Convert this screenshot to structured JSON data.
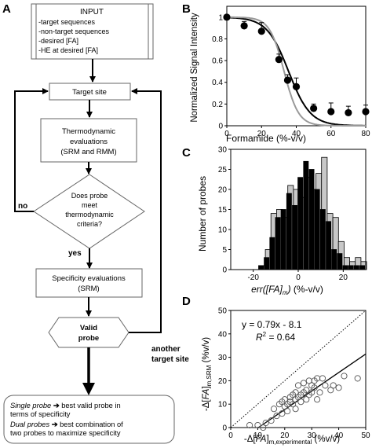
{
  "panels": {
    "a": "A",
    "b": "B",
    "c": "C",
    "d": "D"
  },
  "flowchart": {
    "input": {
      "title": "INPUT",
      "items": [
        "-target sequences",
        "-non-target sequences",
        "-desired [FA]",
        "-HE at desired [FA]"
      ]
    },
    "target_site": "Target site",
    "thermo": [
      "Thermodynamic",
      "evaluations",
      "(SRM and RMM)"
    ],
    "decision": [
      "Does probe",
      "meet",
      "thermodynamic",
      "criteria?"
    ],
    "no_label": "no",
    "yes_label": "yes",
    "specificity": [
      "Specificity evaluations",
      "(SRM)"
    ],
    "valid_probe": [
      "Valid",
      "probe"
    ],
    "another": [
      "another",
      "target site"
    ],
    "output": {
      "single_term": "Single probe",
      "single_line1": " best valid probe in",
      "single_line2": "terms of specificity",
      "dual_term": "Dual probes",
      "dual_line1": " best combination of",
      "dual_line2": "two probes to maximize specificity"
    }
  },
  "chart_data": [
    {
      "panel": "B",
      "type": "scatter",
      "xlabel": "Formamide (%-v/v)",
      "ylabel": "Normalized Signal Intensity",
      "xlim": [
        0,
        80
      ],
      "ylim": [
        0,
        1.1
      ],
      "xticks": [
        "0",
        "20",
        "40",
        "60",
        "80"
      ],
      "yticks": [
        "0",
        "0.2",
        "0.4",
        "0.6",
        "0.8",
        "1"
      ],
      "points": [
        {
          "x": 0,
          "y": 1.0,
          "err": 0.02
        },
        {
          "x": 10,
          "y": 0.92,
          "err": 0.04
        },
        {
          "x": 20,
          "y": 0.87,
          "err": 0.08
        },
        {
          "x": 30,
          "y": 0.61,
          "err": 0.05
        },
        {
          "x": 35,
          "y": 0.42,
          "err": 0.05
        },
        {
          "x": 40,
          "y": 0.36,
          "err": 0.08
        },
        {
          "x": 50,
          "y": 0.16,
          "err": 0.04
        },
        {
          "x": 60,
          "y": 0.13,
          "err": 0.08
        },
        {
          "x": 70,
          "y": 0.12,
          "err": 0.06
        },
        {
          "x": 80,
          "y": 0.13,
          "err": 0.06
        }
      ],
      "curves": [
        {
          "color": "#000000",
          "fm": 35.6,
          "m": 0.16
        },
        {
          "color": "#999999",
          "fm": 33.0,
          "m": 0.24
        }
      ]
    },
    {
      "panel": "C",
      "type": "bar",
      "xlabel": "err([FA]m) (%-v/v)",
      "ylabel": "Number of probes",
      "xlim": [
        -30,
        30
      ],
      "ylim": [
        0,
        30
      ],
      "xticks": [
        "-20",
        "0",
        "20"
      ],
      "yticks": [
        "0",
        "5",
        "10",
        "15",
        "20",
        "25",
        "30"
      ],
      "bin_width": 2.5,
      "bin_centers": [
        -21.25,
        -18.75,
        -16.25,
        -13.75,
        -11.25,
        -8.75,
        -6.25,
        -3.75,
        -1.25,
        1.25,
        3.75,
        6.25,
        8.75,
        11.25,
        13.75,
        16.25,
        18.75,
        21.25,
        23.75,
        26.25,
        28.75
      ],
      "series": [
        {
          "color": "#c8c8c8",
          "values": [
            0,
            0,
            1,
            5,
            14,
            15,
            13,
            21,
            20,
            18,
            23,
            20,
            24,
            28,
            14,
            13,
            7,
            3,
            2,
            3,
            2
          ]
        },
        {
          "color": "#000000",
          "values": [
            0,
            0,
            1,
            3,
            8,
            13,
            15,
            19,
            16,
            23,
            27,
            25,
            20,
            15,
            12,
            5,
            4,
            1,
            1,
            1,
            1
          ]
        }
      ]
    },
    {
      "panel": "D",
      "type": "scatter",
      "xlabel_pre": "-Δ[",
      "xlabel_ital": "FA",
      "xlabel_post": "]",
      "xlabel_sub": "m,experimental",
      "xlabel_unit": " (%v/v)",
      "ylabel_pre": "-Δ[",
      "ylabel_ital": "FA",
      "ylabel_post": "]",
      "ylabel_sub": "m,SRM",
      "ylabel_unit": " (%v/v)",
      "xlim": [
        0,
        50
      ],
      "ylim": [
        0,
        50
      ],
      "xticks": [
        "0",
        "10",
        "20",
        "30",
        "40",
        "50"
      ],
      "yticks": [
        "0",
        "10",
        "20",
        "30",
        "40",
        "50"
      ],
      "equation": "y = 0.79x - 8.1",
      "r2_label": "R",
      "r2_value": " = 0.64",
      "fit": {
        "slope": 0.79,
        "intercept": -8.1,
        "x_from": 10.3,
        "x_to": 50
      },
      "points": [
        [
          7,
          1
        ],
        [
          10,
          1
        ],
        [
          12,
          0
        ],
        [
          13,
          2
        ],
        [
          15,
          3
        ],
        [
          16,
          8
        ],
        [
          17,
          5
        ],
        [
          18,
          10
        ],
        [
          19,
          11
        ],
        [
          19,
          6
        ],
        [
          20,
          9
        ],
        [
          20,
          12
        ],
        [
          21,
          10
        ],
        [
          21,
          7
        ],
        [
          22,
          13
        ],
        [
          22,
          11
        ],
        [
          23,
          14
        ],
        [
          23,
          10
        ],
        [
          24,
          15
        ],
        [
          24,
          12
        ],
        [
          24,
          8
        ],
        [
          25,
          13
        ],
        [
          25,
          18
        ],
        [
          26,
          14
        ],
        [
          26,
          11
        ],
        [
          27,
          15
        ],
        [
          27,
          19
        ],
        [
          28,
          12
        ],
        [
          28,
          16
        ],
        [
          29,
          14
        ],
        [
          29,
          20
        ],
        [
          30,
          15
        ],
        [
          30,
          18
        ],
        [
          31,
          17
        ],
        [
          31,
          20
        ],
        [
          32,
          12
        ],
        [
          32,
          21
        ],
        [
          33,
          15
        ],
        [
          34,
          21
        ],
        [
          35,
          18
        ],
        [
          37,
          16
        ],
        [
          38,
          18
        ],
        [
          40,
          17
        ],
        [
          42,
          22
        ],
        [
          47,
          21
        ]
      ]
    }
  ]
}
